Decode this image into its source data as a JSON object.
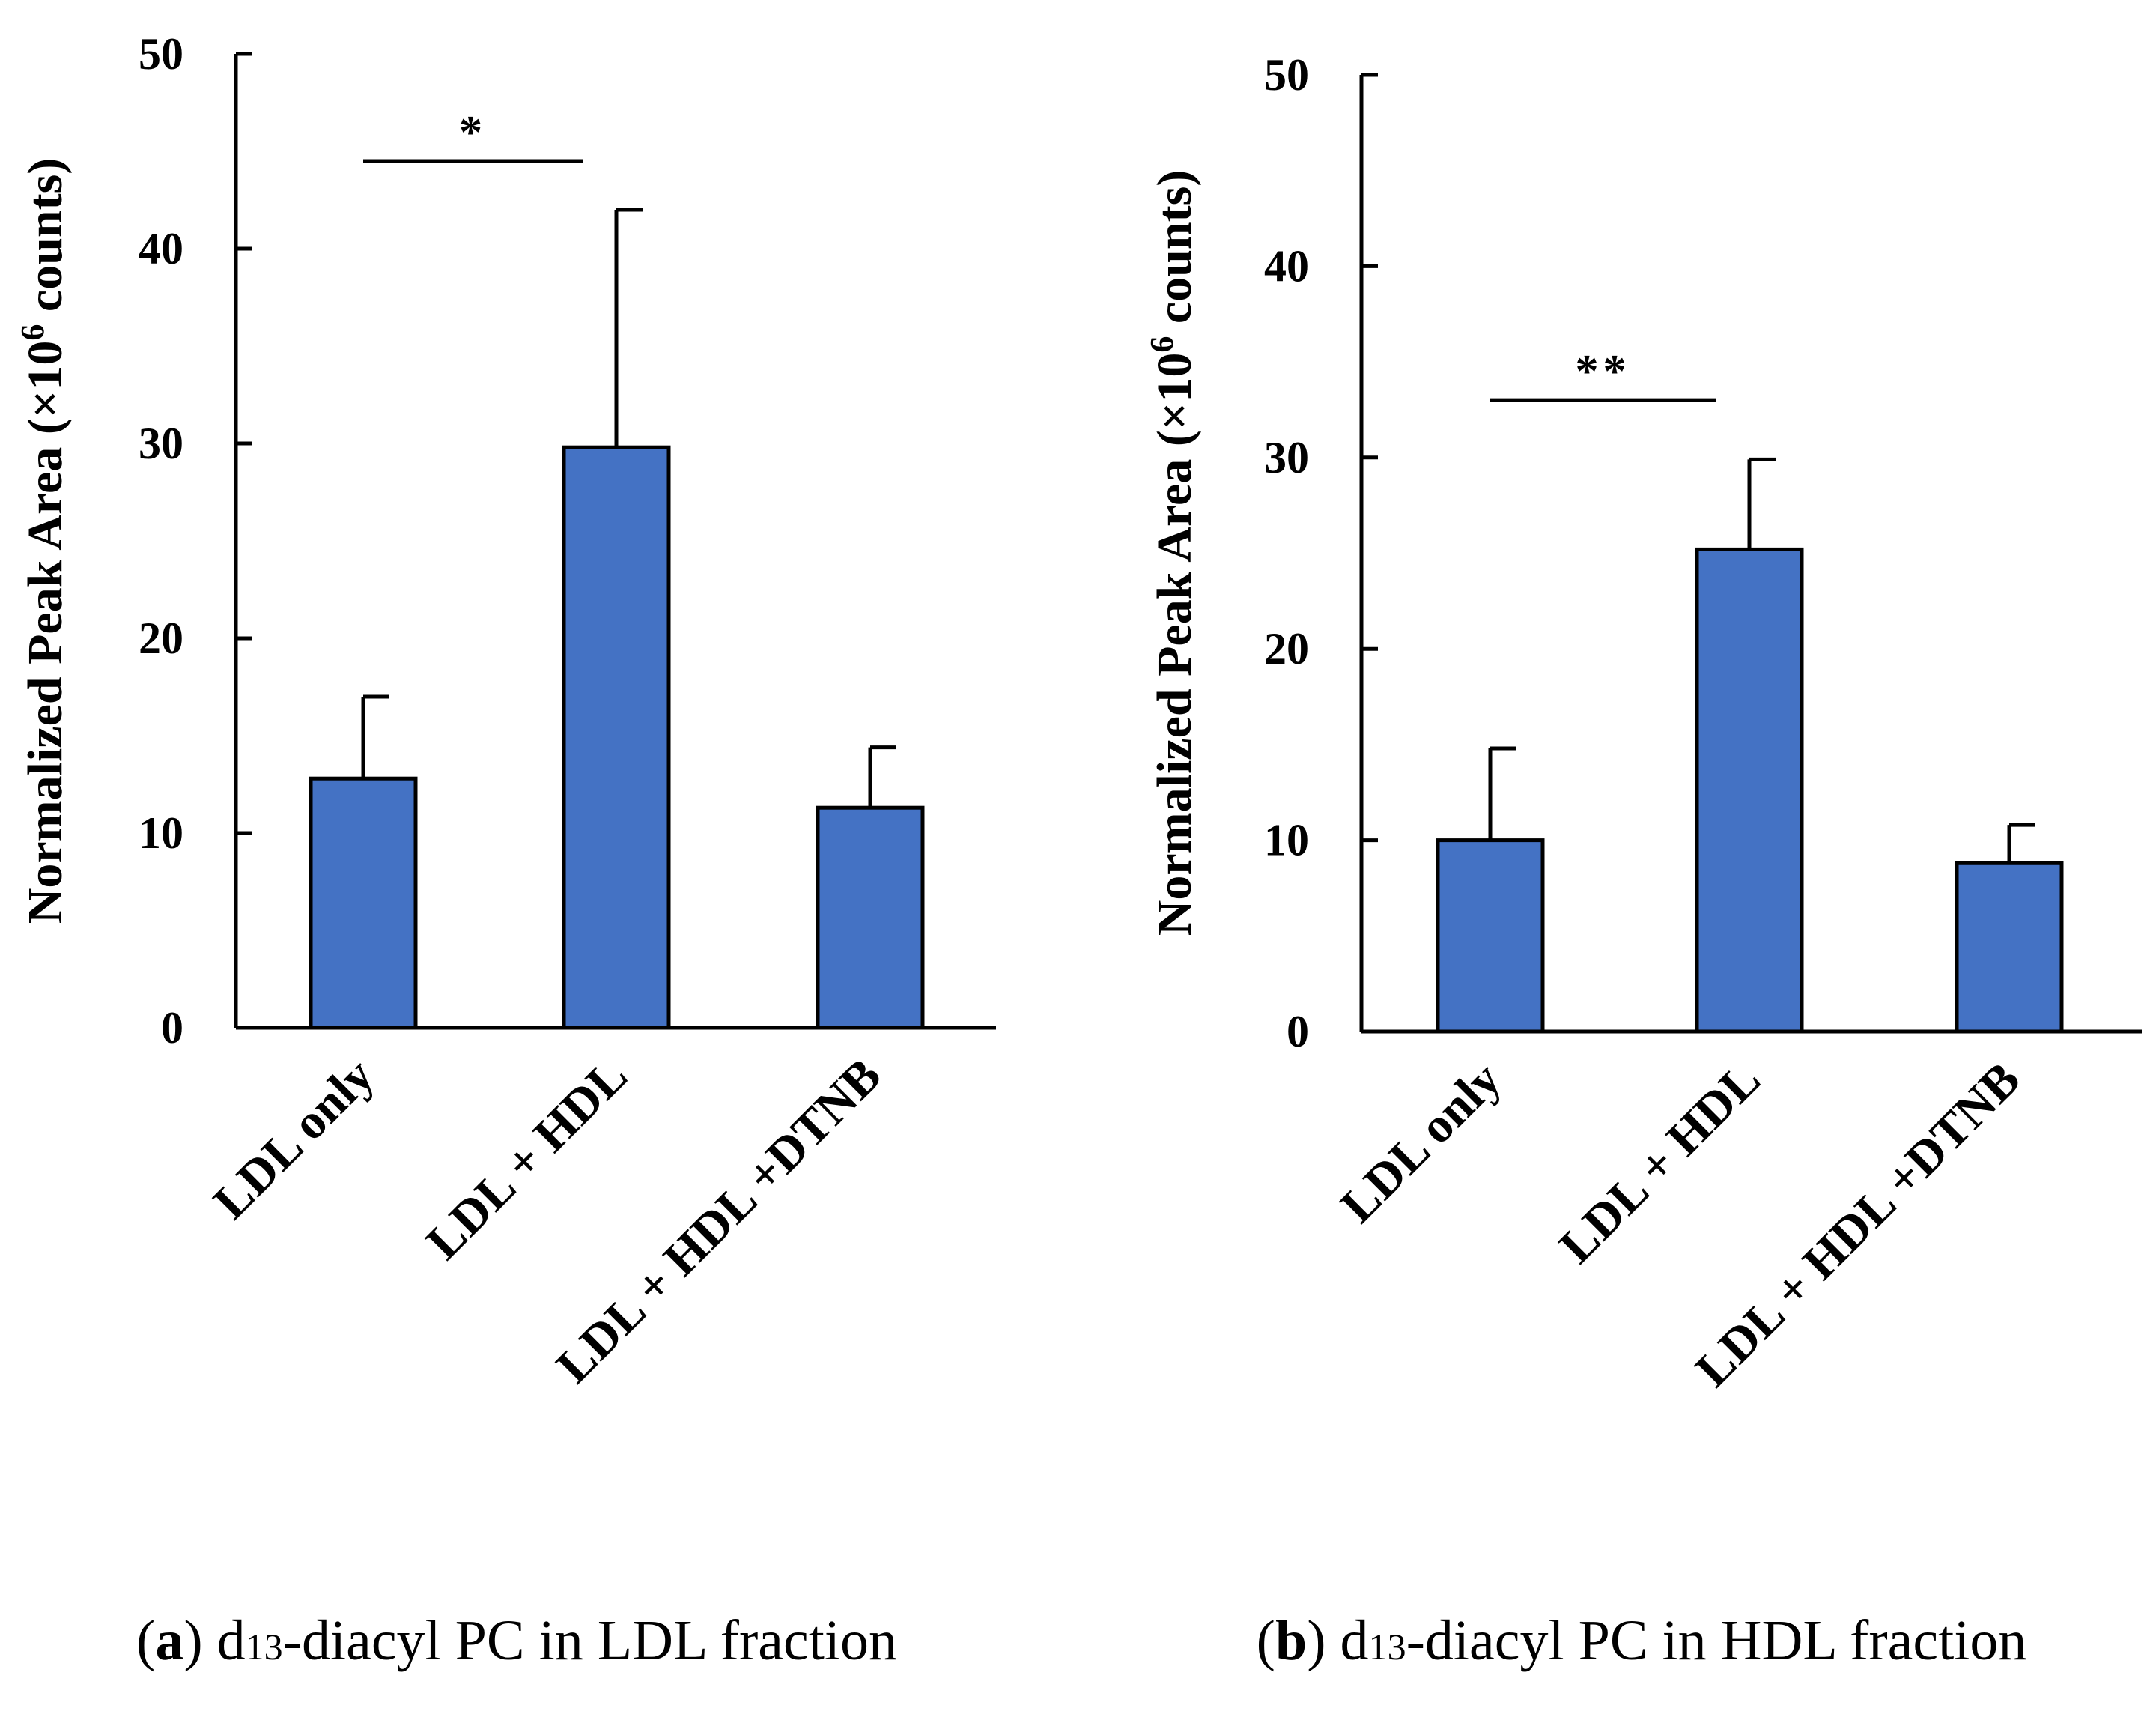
{
  "chart_data": [
    {
      "type": "bar",
      "panel": "a",
      "caption": {
        "label": "a",
        "prefix": "d",
        "sub": "13",
        "rest": "-diacyl PC in LDL fraction"
      },
      "ylabel": {
        "main": "Normalized Peak Area (×10",
        "sup": "6",
        "tail": " counts)"
      },
      "ylim": [
        0,
        50
      ],
      "yticks": [
        0,
        10,
        20,
        30,
        40,
        50
      ],
      "categories": [
        "LDL only",
        "LDL + HDL",
        "LDL + HDL +DTNB"
      ],
      "values": [
        12.8,
        29.8,
        11.3
      ],
      "errors": [
        4.2,
        12.2,
        3.1
      ],
      "color": "#4472C4",
      "significance": {
        "from": 0,
        "to": 1,
        "level": 44.5,
        "label": "*"
      }
    },
    {
      "type": "bar",
      "panel": "b",
      "caption": {
        "label": "b",
        "prefix": "d",
        "sub": "13",
        "rest": "-diacyl PC in HDL fraction"
      },
      "ylabel": {
        "main": "Normalized Peak Area (×10",
        "sup": "6",
        "tail": " counts)"
      },
      "ylim": [
        0,
        50
      ],
      "yticks": [
        0,
        10,
        20,
        30,
        40,
        50
      ],
      "categories": [
        "LDL only",
        "LDL + HDL",
        "LDL + HDL +DTNB"
      ],
      "values": [
        10.0,
        25.2,
        8.8
      ],
      "errors": [
        4.8,
        4.7,
        2.0
      ],
      "color": "#4472C4",
      "significance": {
        "from": 0,
        "to": 1,
        "level": 33.0,
        "label": "**"
      }
    }
  ]
}
